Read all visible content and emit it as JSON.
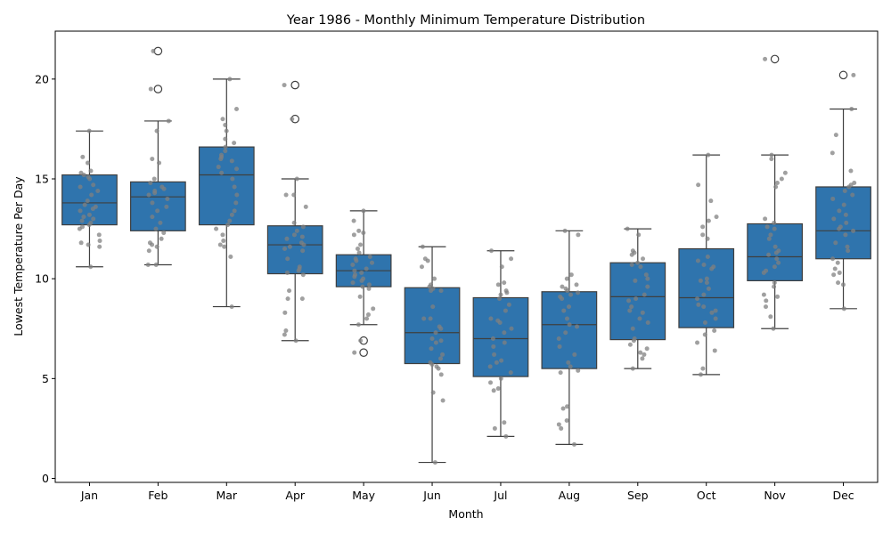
{
  "chart_data": {
    "type": "box",
    "title": "Year 1986 - Monthly Minimum Temperature Distribution",
    "xlabel": "Month",
    "ylabel": "Lowest Temperature Per Day",
    "ylim": [
      -0.2,
      22.4
    ],
    "yticks": [
      0,
      5,
      10,
      15,
      20
    ],
    "grid": false,
    "box_color": "#2f74ad",
    "point_color": "#808080",
    "categories": [
      "Jan",
      "Feb",
      "Mar",
      "Apr",
      "May",
      "Jun",
      "Jul",
      "Aug",
      "Sep",
      "Oct",
      "Nov",
      "Dec"
    ],
    "boxes": [
      {
        "month": "Jan",
        "whisker_low": 10.6,
        "q1": 12.7,
        "median": 13.8,
        "q3": 15.2,
        "whisker_high": 17.4,
        "outliers": []
      },
      {
        "month": "Feb",
        "whisker_low": 10.7,
        "q1": 12.4,
        "median": 14.1,
        "q3": 14.85,
        "whisker_high": 17.9,
        "outliers": [
          19.5,
          21.4
        ]
      },
      {
        "month": "Mar",
        "whisker_low": 8.6,
        "q1": 12.7,
        "median": 15.2,
        "q3": 16.6,
        "whisker_high": 20.0,
        "outliers": []
      },
      {
        "month": "Apr",
        "whisker_low": 6.9,
        "q1": 10.25,
        "median": 11.7,
        "q3": 12.65,
        "whisker_high": 15.0,
        "outliers": [
          18.0,
          19.7
        ]
      },
      {
        "month": "May",
        "whisker_low": 7.7,
        "q1": 9.6,
        "median": 10.4,
        "q3": 11.2,
        "whisker_high": 13.4,
        "outliers": [
          6.3,
          6.9
        ]
      },
      {
        "month": "Jun",
        "whisker_low": 0.8,
        "q1": 5.75,
        "median": 7.3,
        "q3": 9.55,
        "whisker_high": 11.6,
        "outliers": []
      },
      {
        "month": "Jul",
        "whisker_low": 2.1,
        "q1": 5.1,
        "median": 7.0,
        "q3": 9.05,
        "whisker_high": 11.4,
        "outliers": []
      },
      {
        "month": "Aug",
        "whisker_low": 1.7,
        "q1": 5.5,
        "median": 7.7,
        "q3": 9.35,
        "whisker_high": 12.4,
        "outliers": []
      },
      {
        "month": "Sep",
        "whisker_low": 5.5,
        "q1": 6.95,
        "median": 9.1,
        "q3": 10.8,
        "whisker_high": 12.5,
        "outliers": []
      },
      {
        "month": "Oct",
        "whisker_low": 5.2,
        "q1": 7.55,
        "median": 9.05,
        "q3": 11.5,
        "whisker_high": 16.2,
        "outliers": []
      },
      {
        "month": "Nov",
        "whisker_low": 7.5,
        "q1": 9.9,
        "median": 11.1,
        "q3": 12.75,
        "whisker_high": 16.2,
        "outliers": [
          21.0
        ]
      },
      {
        "month": "Dec",
        "whisker_low": 8.5,
        "q1": 11.0,
        "median": 12.4,
        "q3": 14.6,
        "whisker_high": 18.5,
        "outliers": [
          20.2
        ]
      }
    ],
    "points": [
      [
        17.4,
        15.4,
        15.3,
        15.2,
        15.1,
        15.0,
        14.6,
        14.4,
        14.2,
        13.9,
        13.7,
        13.6,
        13.5,
        13.4,
        13.2,
        13.1,
        13.0,
        12.9,
        12.8,
        12.7,
        12.6,
        12.5,
        12.2,
        11.9,
        11.8,
        11.7,
        11.6,
        16.1,
        15.8,
        10.6,
        14.7
      ],
      [
        21.4,
        19.5,
        17.9,
        17.4,
        16.0,
        15.8,
        15.0,
        14.8,
        14.5,
        14.4,
        14.3,
        14.2,
        14.0,
        13.8,
        13.6,
        13.4,
        13.1,
        12.8,
        12.5,
        12.3,
        12.0,
        11.8,
        11.7,
        11.6,
        11.4,
        10.7,
        10.7,
        14.6
      ],
      [
        20.0,
        18.5,
        18.0,
        17.7,
        17.4,
        17.0,
        16.8,
        16.6,
        16.4,
        16.2,
        16.0,
        15.9,
        15.6,
        15.3,
        15.0,
        14.6,
        14.2,
        13.8,
        13.4,
        13.2,
        12.9,
        12.7,
        12.5,
        12.2,
        11.9,
        11.7,
        11.6,
        11.1,
        8.6,
        16.1,
        15.5
      ],
      [
        19.7,
        18.0,
        15.0,
        14.2,
        14.2,
        13.6,
        12.8,
        12.6,
        12.4,
        12.2,
        12.0,
        11.8,
        11.7,
        11.6,
        11.5,
        11.0,
        10.6,
        10.5,
        10.4,
        10.2,
        9.4,
        9.0,
        9.0,
        8.3,
        7.4,
        7.2,
        6.9,
        12.1,
        11.4,
        10.3
      ],
      [
        13.4,
        12.9,
        12.4,
        12.3,
        12.2,
        11.7,
        11.5,
        11.3,
        11.1,
        11.0,
        10.9,
        10.7,
        10.5,
        10.4,
        10.3,
        10.2,
        10.0,
        9.9,
        9.8,
        9.7,
        9.6,
        9.5,
        9.1,
        8.5,
        8.2,
        8.0,
        7.7,
        6.9,
        6.3,
        10.8,
        10.1
      ],
      [
        11.6,
        11.0,
        10.9,
        10.6,
        10.0,
        9.7,
        9.6,
        9.5,
        9.4,
        8.6,
        8.0,
        8.0,
        7.5,
        7.3,
        7.0,
        6.9,
        6.8,
        6.5,
        6.2,
        6.0,
        5.8,
        5.7,
        5.6,
        5.5,
        5.2,
        4.3,
        3.9,
        0.8,
        7.6,
        9.4
      ],
      [
        11.4,
        11.0,
        10.6,
        9.8,
        9.7,
        9.4,
        9.3,
        9.2,
        9.0,
        8.7,
        8.4,
        8.0,
        7.9,
        7.8,
        7.5,
        7.3,
        7.0,
        6.8,
        6.6,
        6.2,
        5.9,
        5.8,
        5.6,
        5.3,
        5.0,
        4.8,
        4.5,
        4.4,
        2.8,
        2.5,
        2.1
      ],
      [
        12.4,
        12.2,
        10.2,
        10.0,
        9.7,
        9.6,
        9.5,
        9.4,
        9.3,
        9.2,
        9.1,
        9.0,
        8.6,
        8.4,
        8.0,
        7.7,
        7.3,
        7.0,
        6.6,
        6.2,
        5.8,
        5.6,
        5.4,
        5.3,
        3.6,
        3.5,
        2.9,
        2.7,
        2.5,
        1.7,
        7.6
      ],
      [
        12.5,
        12.2,
        11.4,
        11.3,
        11.2,
        11.0,
        10.8,
        10.7,
        10.6,
        10.2,
        10.0,
        9.9,
        9.6,
        9.2,
        9.0,
        8.9,
        8.6,
        8.4,
        8.3,
        8.0,
        7.8,
        7.5,
        7.0,
        6.9,
        6.7,
        6.5,
        6.3,
        6.2,
        6.0,
        5.5
      ],
      [
        16.2,
        14.7,
        13.9,
        13.1,
        12.9,
        12.6,
        12.2,
        12.0,
        11.1,
        10.9,
        10.7,
        10.6,
        10.5,
        10.0,
        9.8,
        9.5,
        9.2,
        9.0,
        8.7,
        8.6,
        8.4,
        8.3,
        8.0,
        7.8,
        7.4,
        7.2,
        6.8,
        6.4,
        5.5,
        5.2,
        9.9
      ],
      [
        21.0,
        16.2,
        16.0,
        15.3,
        15.0,
        14.8,
        14.6,
        13.0,
        12.8,
        12.6,
        12.5,
        12.2,
        12.0,
        11.6,
        11.3,
        11.2,
        11.0,
        10.8,
        10.6,
        10.4,
        10.3,
        9.8,
        9.6,
        9.2,
        9.1,
        8.9,
        8.6,
        8.1,
        7.5,
        11.4
      ],
      [
        20.2,
        18.5,
        17.2,
        16.3,
        15.4,
        14.8,
        14.7,
        14.6,
        14.4,
        14.2,
        14.0,
        13.4,
        13.2,
        13.0,
        12.8,
        12.6,
        12.5,
        12.4,
        12.2,
        11.8,
        11.6,
        11.4,
        11.0,
        10.8,
        10.5,
        10.3,
        10.2,
        9.8,
        9.7,
        8.5,
        13.7
      ]
    ]
  }
}
